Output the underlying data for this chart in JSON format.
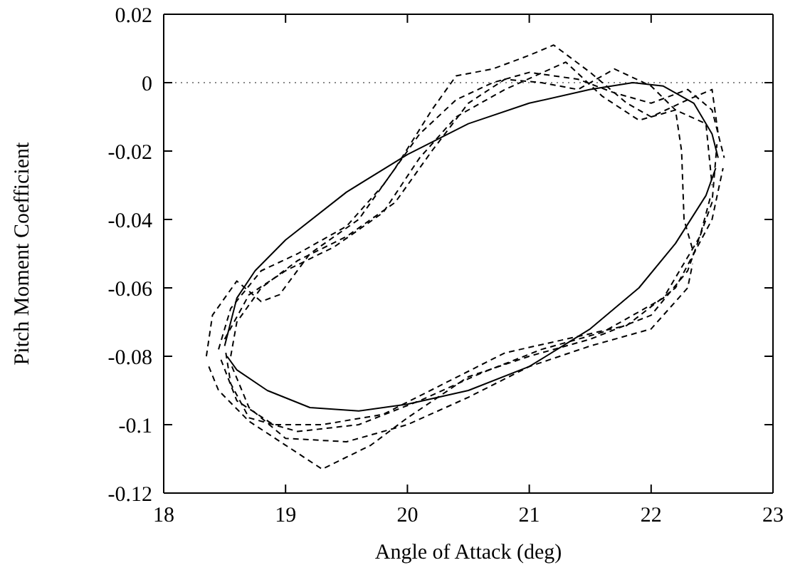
{
  "chart_data": {
    "type": "line",
    "xlabel": "Angle of Attack (deg)",
    "ylabel": "Pitch Moment Coefficient",
    "xlim": [
      18,
      23
    ],
    "xticks": [
      18,
      19,
      20,
      21,
      22,
      23
    ],
    "ylim": [
      -0.12,
      0.02
    ],
    "yticks": [
      -0.12,
      -0.1,
      -0.08,
      -0.06,
      -0.04,
      -0.02,
      0,
      0.02
    ],
    "grid": false,
    "marker": "none",
    "ref_lines": [
      {
        "axis": "y",
        "value": 0,
        "color": "#888888",
        "line_style": "dotted"
      }
    ],
    "series": [
      {
        "color": "#000000",
        "line_style": "solid",
        "x": [
          18.5,
          18.6,
          18.75,
          19,
          19.5,
          20,
          20.5,
          21,
          21.5,
          21.85,
          22.1,
          22.35,
          22.5,
          22.55
        ],
        "values": [
          -0.077,
          -0.063,
          -0.055,
          -0.046,
          -0.032,
          -0.021,
          -0.012,
          -0.006,
          -0.002,
          0,
          -0.001,
          -0.006,
          -0.015,
          -0.022
        ]
      },
      {
        "color": "#000000",
        "line_style": "solid",
        "x": [
          18.52,
          18.6,
          18.85,
          19.2,
          19.6,
          20,
          20.5,
          21,
          21.5,
          21.9,
          22.2,
          22.45,
          22.53
        ],
        "values": [
          -0.08,
          -0.084,
          -0.09,
          -0.095,
          -0.096,
          -0.094,
          -0.09,
          -0.083,
          -0.072,
          -0.06,
          -0.047,
          -0.033,
          -0.025
        ]
      },
      {
        "color": "#000000",
        "line_style": "dashed",
        "x": [
          18.35,
          18.4,
          18.6,
          18.8,
          18.95,
          19.2,
          19.6,
          19.9,
          20.2,
          20.4,
          20.7,
          21,
          21.2,
          21.5,
          21.8,
          22,
          22.3,
          22.5,
          22.55
        ],
        "values": [
          -0.08,
          -0.068,
          -0.058,
          -0.064,
          -0.062,
          -0.05,
          -0.04,
          -0.025,
          -0.008,
          0.002,
          0.004,
          0.008,
          0.011,
          0.003,
          -0.006,
          -0.01,
          -0.005,
          -0.002,
          -0.015
        ]
      },
      {
        "color": "#000000",
        "line_style": "dashed",
        "x": [
          18.37,
          18.45,
          18.7,
          19,
          19.3,
          19.7,
          20,
          20.5,
          21,
          21.5,
          22,
          22.3,
          22.5,
          22.54
        ],
        "values": [
          -0.083,
          -0.09,
          -0.099,
          -0.106,
          -0.113,
          -0.106,
          -0.098,
          -0.086,
          -0.08,
          -0.075,
          -0.068,
          -0.055,
          -0.035,
          -0.018
        ]
      },
      {
        "color": "#000000",
        "line_style": "dashed",
        "x": [
          18.45,
          18.55,
          18.8,
          19.1,
          19.5,
          19.8,
          20.1,
          20.4,
          20.7,
          21,
          21.4,
          21.7,
          22,
          22.3,
          22.5,
          22.6
        ],
        "values": [
          -0.078,
          -0.066,
          -0.055,
          -0.05,
          -0.042,
          -0.03,
          -0.015,
          -0.005,
          0,
          0.003,
          0.001,
          -0.003,
          -0.006,
          -0.002,
          -0.008,
          -0.022
        ]
      },
      {
        "color": "#000000",
        "line_style": "dashed",
        "x": [
          18.47,
          18.6,
          18.9,
          19.3,
          19.8,
          20.3,
          20.8,
          21.3,
          21.8,
          22.2,
          22.5,
          22.59
        ],
        "values": [
          -0.081,
          -0.093,
          -0.1,
          -0.1,
          -0.097,
          -0.088,
          -0.079,
          -0.075,
          -0.071,
          -0.06,
          -0.04,
          -0.025
        ]
      },
      {
        "color": "#000000",
        "line_style": "dashed",
        "x": [
          18.55,
          18.6,
          18.8,
          19.1,
          19.5,
          19.9,
          20.2,
          20.5,
          20.8,
          21.1,
          21.4,
          21.7,
          22,
          22.2,
          22.25,
          22.27,
          22.35
        ],
        "values": [
          -0.08,
          -0.07,
          -0.06,
          -0.052,
          -0.045,
          -0.035,
          -0.02,
          -0.006,
          0.001,
          0,
          -0.002,
          0.004,
          -0.001,
          -0.008,
          -0.02,
          -0.04,
          -0.05
        ]
      },
      {
        "color": "#000000",
        "line_style": "dashed",
        "x": [
          18.56,
          18.7,
          19,
          19.5,
          20,
          20.5,
          21,
          21.5,
          22,
          22.3,
          22.34
        ],
        "values": [
          -0.083,
          -0.095,
          -0.104,
          -0.105,
          -0.1,
          -0.092,
          -0.083,
          -0.077,
          -0.072,
          -0.06,
          -0.053
        ]
      },
      {
        "color": "#000000",
        "line_style": "dashed",
        "x": [
          18.5,
          18.7,
          19,
          19.4,
          19.8,
          20.1,
          20.4,
          20.8,
          21.3,
          21.6,
          21.9,
          22.2,
          22.45,
          22.5
        ],
        "values": [
          -0.075,
          -0.062,
          -0.055,
          -0.048,
          -0.038,
          -0.022,
          -0.01,
          -0.002,
          0.006,
          -0.004,
          -0.011,
          -0.008,
          -0.012,
          -0.03
        ]
      },
      {
        "color": "#000000",
        "line_style": "dashed",
        "x": [
          18.51,
          18.55,
          18.7,
          19.1,
          19.6,
          20.1,
          20.6,
          21.1,
          21.6,
          22.1,
          22.4,
          22.49
        ],
        "values": [
          -0.079,
          -0.088,
          -0.098,
          -0.102,
          -0.1,
          -0.093,
          -0.085,
          -0.078,
          -0.073,
          -0.063,
          -0.045,
          -0.033
        ]
      }
    ]
  }
}
